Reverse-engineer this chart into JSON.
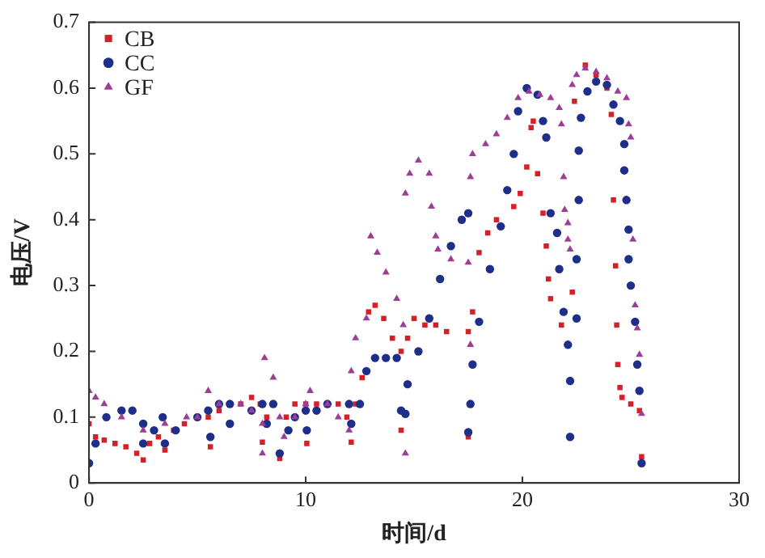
{
  "chart_data": {
    "type": "scatter",
    "xlabel": "时间/d",
    "ylabel": "电压/V",
    "xlim": [
      0,
      30
    ],
    "xticks": [
      0,
      10,
      20,
      30
    ],
    "ylim": [
      0,
      0.7
    ],
    "yticks": [
      0,
      0.1,
      0.2,
      0.3,
      0.4,
      0.5,
      0.6,
      0.7
    ],
    "grid": false,
    "legend": "top left",
    "series": [
      {
        "name": "CB",
        "color": "#d42027",
        "marker": "square",
        "x": [
          0,
          0.3,
          0.7,
          1.2,
          1.7,
          2.2,
          2.5,
          2.8,
          3.2,
          3.5,
          3.9,
          4.4,
          5.5,
          5.6,
          6,
          7,
          7.5,
          7.9,
          8,
          8.2,
          8.8,
          9.1,
          9.5,
          10,
          10.05,
          10.5,
          11.5,
          11.9,
          12.1,
          12.3,
          12.6,
          12.9,
          13.2,
          13.6,
          14,
          14.4,
          14.4,
          14.7,
          15,
          15.5,
          16,
          16.5,
          17.5,
          17.5,
          17.7,
          18,
          18.4,
          18.8,
          19.6,
          19.9,
          20.2,
          20.4,
          20.5,
          20.7,
          20.95,
          21.1,
          21.2,
          21.3,
          21.8,
          22.3,
          22.4,
          22.9,
          23.4,
          23.9,
          24.1,
          24.2,
          24.3,
          24.35,
          24.4,
          24.5,
          24.6,
          25,
          25.4,
          25.5
        ],
        "values": [
          0.09,
          0.07,
          0.065,
          0.06,
          0.055,
          0.045,
          0.035,
          0.06,
          0.07,
          0.05,
          0.08,
          0.09,
          0.1,
          0.055,
          0.11,
          0.12,
          0.13,
          0.12,
          0.062,
          0.1,
          0.037,
          0.1,
          0.12,
          0.12,
          0.06,
          0.12,
          0.12,
          0.1,
          0.062,
          0.12,
          0.16,
          0.26,
          0.27,
          0.25,
          0.22,
          0.2,
          0.08,
          0.22,
          0.25,
          0.24,
          0.24,
          0.23,
          0.23,
          0.07,
          0.26,
          0.35,
          0.38,
          0.4,
          0.42,
          0.44,
          0.48,
          0.54,
          0.55,
          0.47,
          0.41,
          0.36,
          0.31,
          0.28,
          0.24,
          0.29,
          0.58,
          0.635,
          0.62,
          0.6,
          0.56,
          0.43,
          0.33,
          0.24,
          0.18,
          0.145,
          0.13,
          0.12,
          0.11,
          0.04
        ]
      },
      {
        "name": "CC",
        "color": "#1e2f8a",
        "marker": "circle",
        "x": [
          0,
          0.3,
          0.8,
          1.5,
          2,
          2.5,
          2.5,
          3,
          3.4,
          3.5,
          4,
          5,
          5.5,
          5.6,
          6,
          6.5,
          6.5,
          7.5,
          8,
          8.2,
          8.5,
          8.8,
          9.2,
          9.5,
          10,
          10.05,
          10.5,
          11,
          12,
          12.1,
          12.5,
          12.8,
          13.2,
          13.7,
          14.2,
          14.4,
          14.6,
          14.7,
          15.2,
          15.7,
          16.2,
          16.7,
          17.2,
          17.5,
          17.5,
          17.6,
          17.7,
          18,
          18.5,
          19,
          19.3,
          19.6,
          19.8,
          20.2,
          20.7,
          20.95,
          21.1,
          21.3,
          21.6,
          21.7,
          21.9,
          22.1,
          22.2,
          22.2,
          22.5,
          22.5,
          22.6,
          22.6,
          22.7,
          23,
          23.4,
          23.9,
          24.2,
          24.5,
          24.7,
          24.7,
          24.8,
          24.9,
          24.9,
          25,
          25.2,
          25.3,
          25.4,
          25.5
        ],
        "values": [
          0.03,
          0.06,
          0.1,
          0.11,
          0.11,
          0.09,
          0.06,
          0.08,
          0.1,
          0.06,
          0.08,
          0.1,
          0.11,
          0.07,
          0.12,
          0.12,
          0.09,
          0.11,
          0.12,
          0.09,
          0.12,
          0.045,
          0.08,
          0.1,
          0.11,
          0.08,
          0.11,
          0.12,
          0.12,
          0.09,
          0.12,
          0.17,
          0.19,
          0.19,
          0.19,
          0.11,
          0.105,
          0.15,
          0.2,
          0.25,
          0.31,
          0.36,
          0.4,
          0.41,
          0.077,
          0.12,
          0.18,
          0.245,
          0.325,
          0.39,
          0.445,
          0.5,
          0.565,
          0.6,
          0.59,
          0.55,
          0.525,
          0.41,
          0.38,
          0.325,
          0.26,
          0.21,
          0.155,
          0.07,
          0.25,
          0.34,
          0.43,
          0.505,
          0.555,
          0.595,
          0.61,
          0.605,
          0.575,
          0.55,
          0.515,
          0.475,
          0.43,
          0.385,
          0.34,
          0.3,
          0.245,
          0.18,
          0.14,
          0.03
        ]
      },
      {
        "name": "GF",
        "color": "#9c3d96",
        "marker": "triangle",
        "x": [
          0,
          0.3,
          0.7,
          1.5,
          2.5,
          3.5,
          4.5,
          5,
          5.5,
          6,
          7,
          7.5,
          8,
          8,
          8.1,
          8.5,
          8.8,
          9,
          9.5,
          10,
          10.2,
          11,
          11.5,
          12,
          12.1,
          12.3,
          12.8,
          13,
          13.3,
          13.7,
          14.2,
          14.5,
          14.6,
          14.6,
          14.8,
          15.2,
          15.7,
          15.8,
          16,
          16.1,
          16.7,
          17.5,
          17.6,
          17.6,
          17.7,
          18.3,
          18.8,
          19.3,
          19.8,
          20.3,
          20.8,
          21.3,
          21.7,
          21.8,
          21.9,
          21.95,
          22.1,
          22.1,
          22.2,
          22.3,
          22.5,
          22.9,
          23.4,
          23.9,
          24.4,
          24.8,
          24.9,
          25,
          25.1,
          25.2,
          25.3,
          25.4,
          25.5
        ],
        "values": [
          0.14,
          0.13,
          0.12,
          0.1,
          0.08,
          0.09,
          0.1,
          0.1,
          0.14,
          0.12,
          0.12,
          0.11,
          0.09,
          0.045,
          0.19,
          0.16,
          0.1,
          0.07,
          0.1,
          0.12,
          0.14,
          0.12,
          0.1,
          0.08,
          0.17,
          0.22,
          0.25,
          0.375,
          0.35,
          0.32,
          0.28,
          0.24,
          0.045,
          0.44,
          0.47,
          0.49,
          0.47,
          0.42,
          0.375,
          0.355,
          0.34,
          0.335,
          0.21,
          0.465,
          0.5,
          0.515,
          0.53,
          0.555,
          0.585,
          0.595,
          0.59,
          0.585,
          0.57,
          0.545,
          0.465,
          0.415,
          0.395,
          0.37,
          0.355,
          0.605,
          0.62,
          0.63,
          0.625,
          0.615,
          0.595,
          0.585,
          0.545,
          0.525,
          0.37,
          0.27,
          0.235,
          0.195,
          0.105
        ]
      }
    ]
  }
}
